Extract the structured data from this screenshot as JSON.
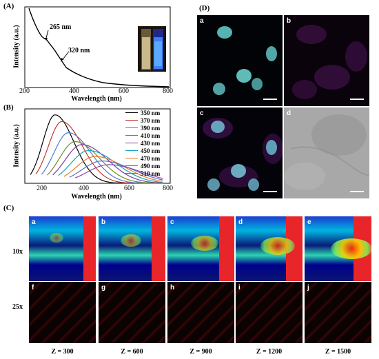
{
  "panels": {
    "A": "(A)",
    "B": "(B)",
    "C": "(C)",
    "D": "(D)"
  },
  "panelA": {
    "peak1": "265 nm",
    "peak2": "320 nm",
    "ylabel": "Intensity (a.u.)",
    "xlabel": "Wavelength (nm)",
    "xticks": [
      "200",
      "400",
      "600",
      "800"
    ]
  },
  "panelB": {
    "ylabel": "Intensity (a.u.)",
    "xlabel": "Wavelength (nm)",
    "xticks": [
      "200",
      "400",
      "600",
      "800"
    ],
    "legend": [
      {
        "label": "350 nm",
        "color": "#000000"
      },
      {
        "label": "370 nm",
        "color": "#c0392b"
      },
      {
        "label": "390 nm",
        "color": "#4a7bd0"
      },
      {
        "label": "410 nm",
        "color": "#6b8e23"
      },
      {
        "label": "430 nm",
        "color": "#7d3c98"
      },
      {
        "label": "450 nm",
        "color": "#17a2b8"
      },
      {
        "label": "470 nm",
        "color": "#e67e22"
      },
      {
        "label": "490 nm",
        "color": "#5d6dbe"
      },
      {
        "label": "510 nm",
        "color": "#8e44ad"
      }
    ]
  },
  "panelC": {
    "row1_label": "10x",
    "row2_label": "25x",
    "letters_top": [
      "a",
      "b",
      "c",
      "d",
      "e"
    ],
    "letters_bottom": [
      "f",
      "g",
      "h",
      "i",
      "j"
    ],
    "z_labels": [
      "Z = 300",
      "Z = 600",
      "Z = 900",
      "Z = 1200",
      "Z = 1500"
    ]
  },
  "panelD": {
    "letters": [
      "a",
      "b",
      "c",
      "d"
    ]
  }
}
